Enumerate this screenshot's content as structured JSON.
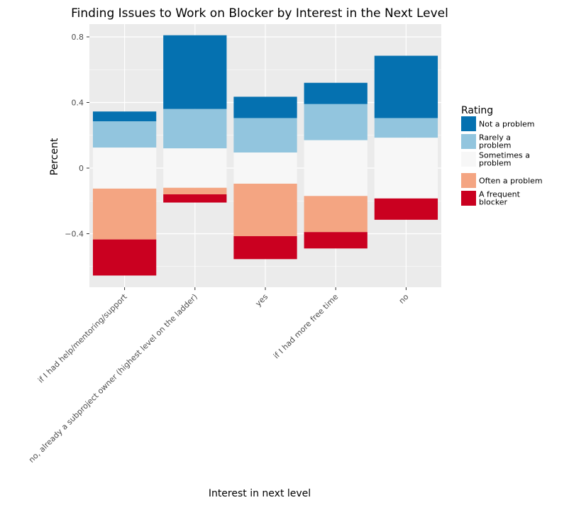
{
  "chart_data": {
    "type": "bar",
    "stacked": "diverging",
    "title": "Finding Issues to Work on Blocker by Interest in the Next Level",
    "xlabel": "Interest in next level",
    "ylabel": "Percent",
    "ylim": [
      -0.72,
      0.87
    ],
    "yticks": [
      0.8,
      0.4,
      0,
      -0.4
    ],
    "ytick_labels": [
      "0.8",
      "0.4",
      "0",
      "−0.4"
    ],
    "grid": true,
    "legend_position": "right",
    "categories": [
      "if I had help/mentoring/support",
      "no, already a subproject owner (highest level on the ladder)",
      "yes",
      "if I had more free time",
      "no"
    ],
    "series": [
      {
        "name": "Not a problem",
        "color": "#0571b0",
        "values": [
          0.06,
          0.45,
          0.13,
          0.13,
          0.38
        ]
      },
      {
        "name": "Rarely a problem",
        "color": "#92c5de",
        "values": [
          0.16,
          0.24,
          0.21,
          0.22,
          0.12
        ]
      },
      {
        "name": "Sometimes a problem",
        "color": "#f7f7f7",
        "values": [
          0.25,
          0.24,
          0.19,
          0.34,
          0.37
        ]
      },
      {
        "name": "Often a problem",
        "color": "#f4a582",
        "values": [
          0.31,
          0.04,
          0.32,
          0.22,
          0.0
        ]
      },
      {
        "name": "A frequent blocker",
        "color": "#ca0020",
        "values": [
          0.22,
          0.05,
          0.14,
          0.1,
          0.13
        ]
      }
    ],
    "legend": {
      "title": "Rating",
      "entries": [
        {
          "lines": [
            "Not a problem"
          ],
          "color": "#0571b0"
        },
        {
          "lines": [
            "Rarely a",
            "problem"
          ],
          "color": "#92c5de"
        },
        {
          "lines": [
            "Sometimes a",
            "problem"
          ],
          "color": "#f7f7f7"
        },
        {
          "lines": [
            "Often a problem"
          ],
          "color": "#f4a582"
        },
        {
          "lines": [
            "A frequent",
            "blocker"
          ],
          "color": "#ca0020"
        }
      ]
    }
  }
}
